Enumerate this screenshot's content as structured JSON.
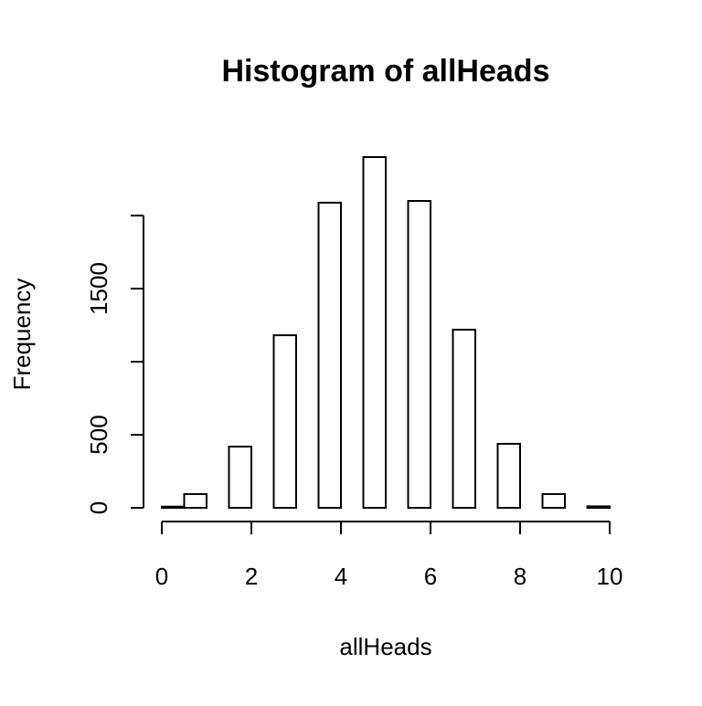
{
  "chart_data": {
    "type": "histogram",
    "title": "Histogram of allHeads",
    "x_label": "allHeads",
    "y_label": "Frequency",
    "bins": [
      0,
      0.5,
      1,
      1.5,
      2,
      2.5,
      3,
      3.5,
      4,
      4.5,
      5,
      5.5,
      6,
      6.5,
      7,
      7.5,
      8,
      8.5,
      9,
      9.5,
      10
    ],
    "values": [
      8,
      94,
      0,
      419,
      0,
      1181,
      0,
      2088,
      0,
      2400,
      0,
      2100,
      0,
      1219,
      0,
      438,
      0,
      94,
      0,
      10
    ],
    "color": "#ffffff",
    "xlim": [
      0,
      10
    ],
    "xticks": [
      0,
      2,
      4,
      6,
      8,
      10
    ],
    "ylim": [
      0,
      2500
    ],
    "yticks": [
      0,
      500,
      {
        "value": 1000,
        "label": null
      },
      1500,
      {
        "value": 2000,
        "label": null
      }
    ],
    "grid": false
  }
}
